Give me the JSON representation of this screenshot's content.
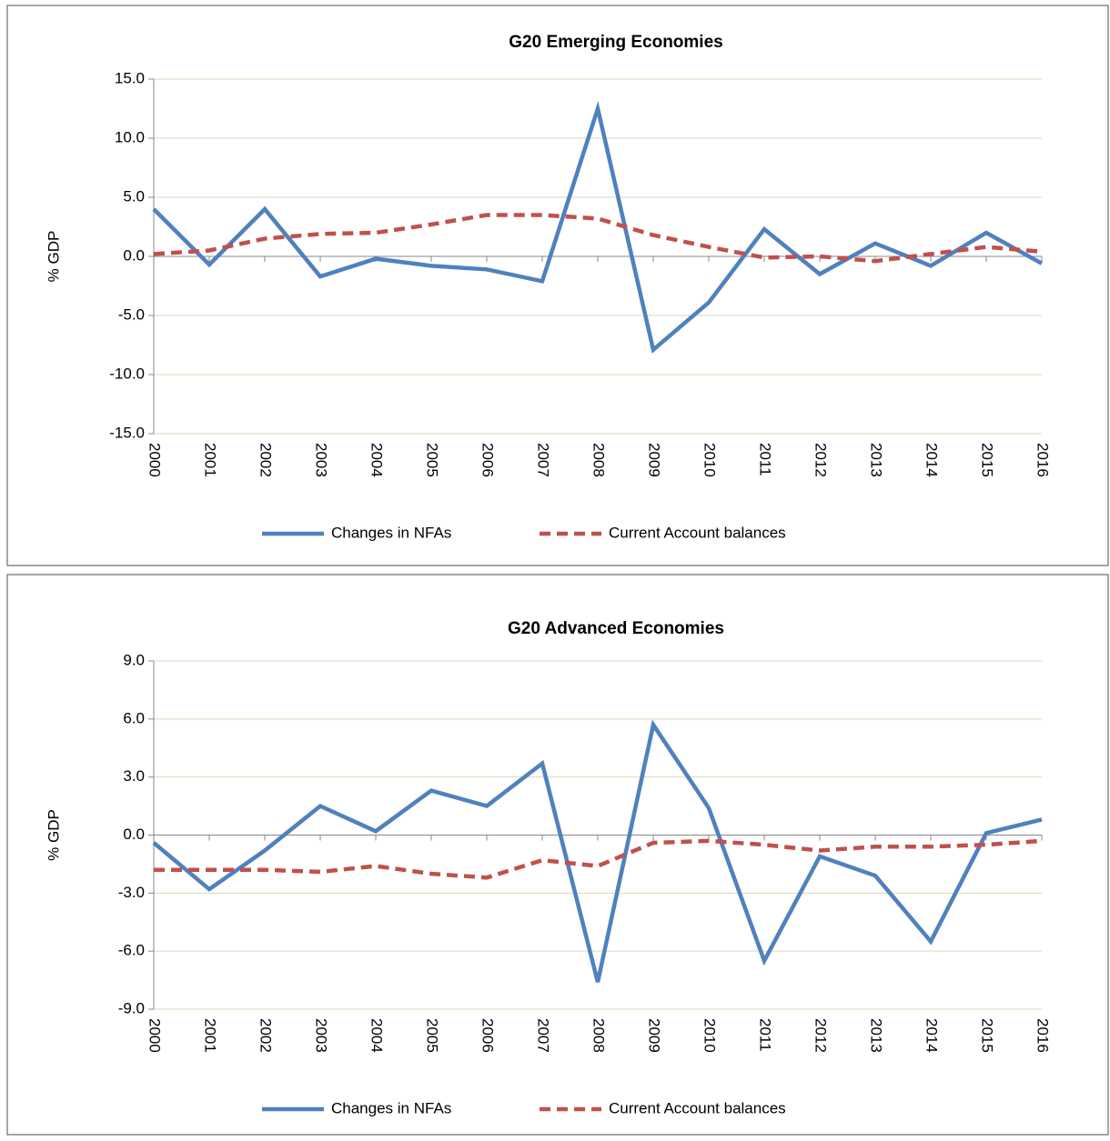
{
  "chart_data": [
    {
      "type": "line",
      "title": "G20 Emerging Economies",
      "ylabel": "% GDP",
      "categories": [
        "2000",
        "2001",
        "2002",
        "2003",
        "2004",
        "2005",
        "2006",
        "2007",
        "2008",
        "2009",
        "2010",
        "2011",
        "2012",
        "2013",
        "2014",
        "2015",
        "2016"
      ],
      "series": [
        {
          "name": "Changes in NFAs",
          "color": "#4f81bd",
          "line_style": "solid",
          "values": [
            4.0,
            -0.7,
            4.0,
            -1.7,
            -0.2,
            -0.8,
            -1.1,
            -2.1,
            12.5,
            -7.9,
            -3.9,
            2.3,
            -1.5,
            1.1,
            -0.8,
            2.0,
            -0.6
          ]
        },
        {
          "name": "Current Account balances",
          "color": "#c0504d",
          "line_style": "dashed",
          "values": [
            0.2,
            0.5,
            1.5,
            1.9,
            2.0,
            2.7,
            3.5,
            3.5,
            3.2,
            1.8,
            0.8,
            -0.1,
            0.0,
            -0.4,
            0.2,
            0.8,
            0.4
          ]
        }
      ],
      "ylim": [
        -15,
        15
      ],
      "yticks": [
        {
          "value": -15,
          "label": "-15.0"
        },
        {
          "value": -10,
          "label": "-10.0"
        },
        {
          "value": -5,
          "label": "-5.0"
        },
        {
          "value": 0,
          "label": "0.0"
        },
        {
          "value": 5,
          "label": "5.0"
        },
        {
          "value": 10,
          "label": "10.0"
        },
        {
          "value": 15,
          "label": "15.0"
        }
      ],
      "grid": true,
      "legend": "bottom"
    },
    {
      "type": "line",
      "title": "G20 Advanced Economies",
      "ylabel": "% GDP",
      "categories": [
        "2000",
        "2001",
        "2002",
        "2003",
        "2004",
        "2005",
        "2006",
        "2007",
        "2008",
        "2009",
        "2010",
        "2011",
        "2012",
        "2013",
        "2014",
        "2015",
        "2016"
      ],
      "series": [
        {
          "name": "Changes in NFAs",
          "color": "#4f81bd",
          "line_style": "solid",
          "values": [
            -0.4,
            -2.8,
            -0.8,
            1.5,
            0.2,
            2.3,
            1.5,
            3.7,
            -7.6,
            5.7,
            1.4,
            -6.5,
            -1.1,
            -2.1,
            -5.5,
            0.1,
            0.8
          ]
        },
        {
          "name": "Current Account balances",
          "color": "#c0504d",
          "line_style": "dashed",
          "values": [
            -1.8,
            -1.8,
            -1.8,
            -1.9,
            -1.6,
            -2.0,
            -2.2,
            -1.3,
            -1.6,
            -0.4,
            -0.3,
            -0.5,
            -0.8,
            -0.6,
            -0.6,
            -0.5,
            -0.3
          ]
        }
      ],
      "ylim": [
        -9,
        9
      ],
      "yticks": [
        {
          "value": -9,
          "label": "-9.0"
        },
        {
          "value": -6,
          "label": "-6.0"
        },
        {
          "value": -3,
          "label": "-3.0"
        },
        {
          "value": 0,
          "label": "0.0"
        },
        {
          "value": 3,
          "label": "3.0"
        },
        {
          "value": 6,
          "label": "6.0"
        },
        {
          "value": 9,
          "label": "9.0"
        }
      ],
      "grid": true,
      "legend": "bottom"
    }
  ]
}
